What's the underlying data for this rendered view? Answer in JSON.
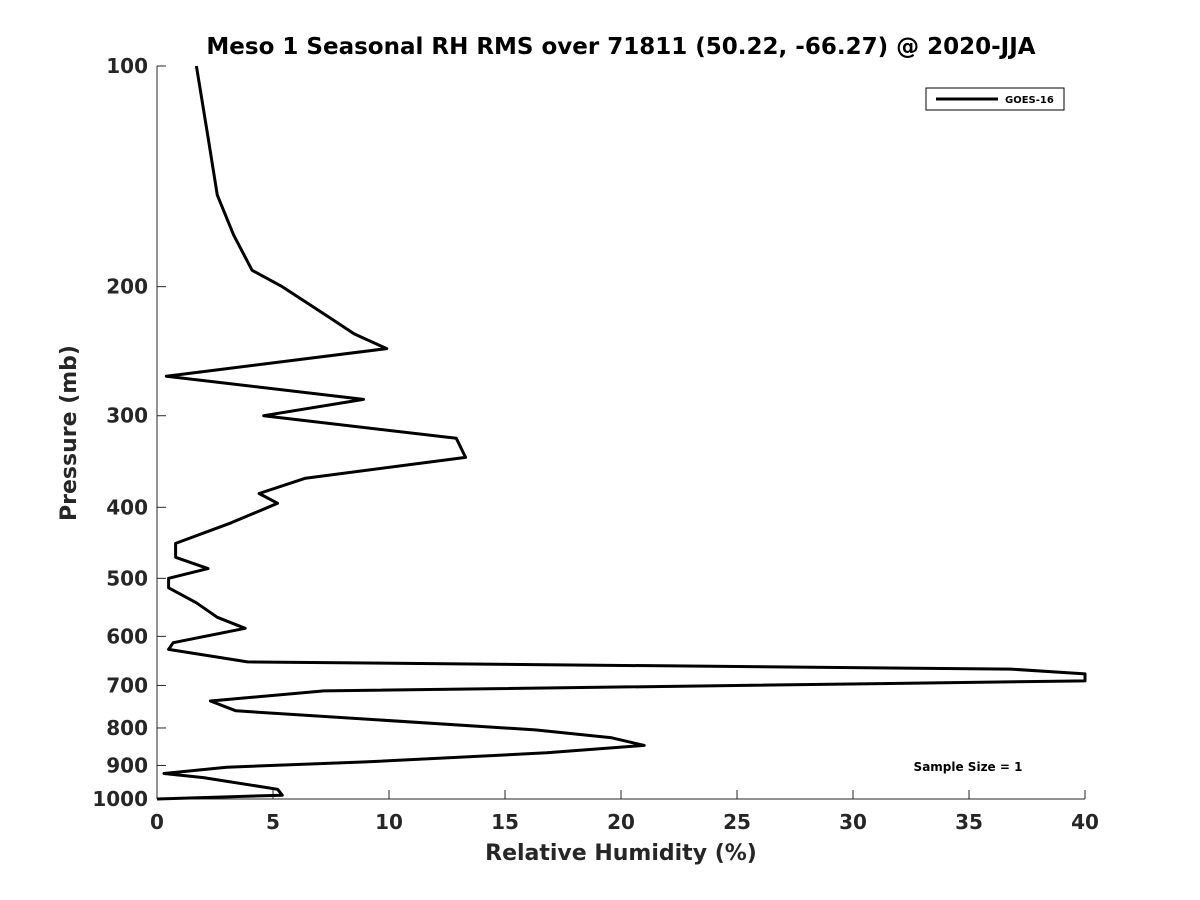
{
  "chart_data": {
    "type": "line",
    "title": "Meso 1 Seasonal RH RMS over 71811 (50.22, -66.27) @ 2020-JJA",
    "xlabel": "Relative Humidity (%)",
    "ylabel": "Pressure (mb)",
    "xlim": [
      0,
      40
    ],
    "ylim": [
      100,
      1000
    ],
    "y_scale": "log",
    "y_reversed": true,
    "grid": false,
    "legend_position": "top-right",
    "x_ticks": [
      0,
      5,
      10,
      15,
      20,
      25,
      30,
      35,
      40
    ],
    "x_tick_labels": [
      "0",
      "5",
      "10",
      "15",
      "20",
      "25",
      "30",
      "35",
      "40"
    ],
    "y_ticks": [
      100,
      200,
      300,
      400,
      500,
      600,
      700,
      800,
      900,
      1000
    ],
    "y_tick_labels": [
      "100",
      "200",
      "300",
      "400",
      "500",
      "600",
      "700",
      "800",
      "900",
      "1000"
    ],
    "series": [
      {
        "name": "GOES-16",
        "color": "#000000",
        "x": [
          1.7,
          2.2,
          2.6,
          3.3,
          4.1,
          5.4,
          7.4,
          8.5,
          9.9,
          0.4,
          8.9,
          4.6,
          12.9,
          13.3,
          6.4,
          4.4,
          5.2,
          3.2,
          0.8,
          0.8,
          2.2,
          0.5,
          0.5,
          1.7,
          2.6,
          3.8,
          0.7,
          0.5,
          3.9,
          36.8,
          40.0,
          40.0,
          7.2,
          2.3,
          3.4,
          16.3,
          19.6,
          21.0,
          16.8,
          9.0,
          3.0,
          0.3,
          2.0,
          5.2,
          5.4,
          0.0
        ],
        "y": [
          100,
          125,
          150,
          170,
          190,
          200,
          220,
          232,
          243,
          265,
          285,
          300,
          322,
          342,
          365,
          383,
          395,
          420,
          448,
          468,
          485,
          500,
          515,
          540,
          565,
          585,
          612,
          625,
          650,
          665,
          675,
          690,
          712,
          735,
          758,
          805,
          825,
          845,
          865,
          890,
          905,
          923,
          935,
          970,
          988,
          1000
        ]
      }
    ],
    "annotations": [
      "Sample Size = 1"
    ]
  }
}
